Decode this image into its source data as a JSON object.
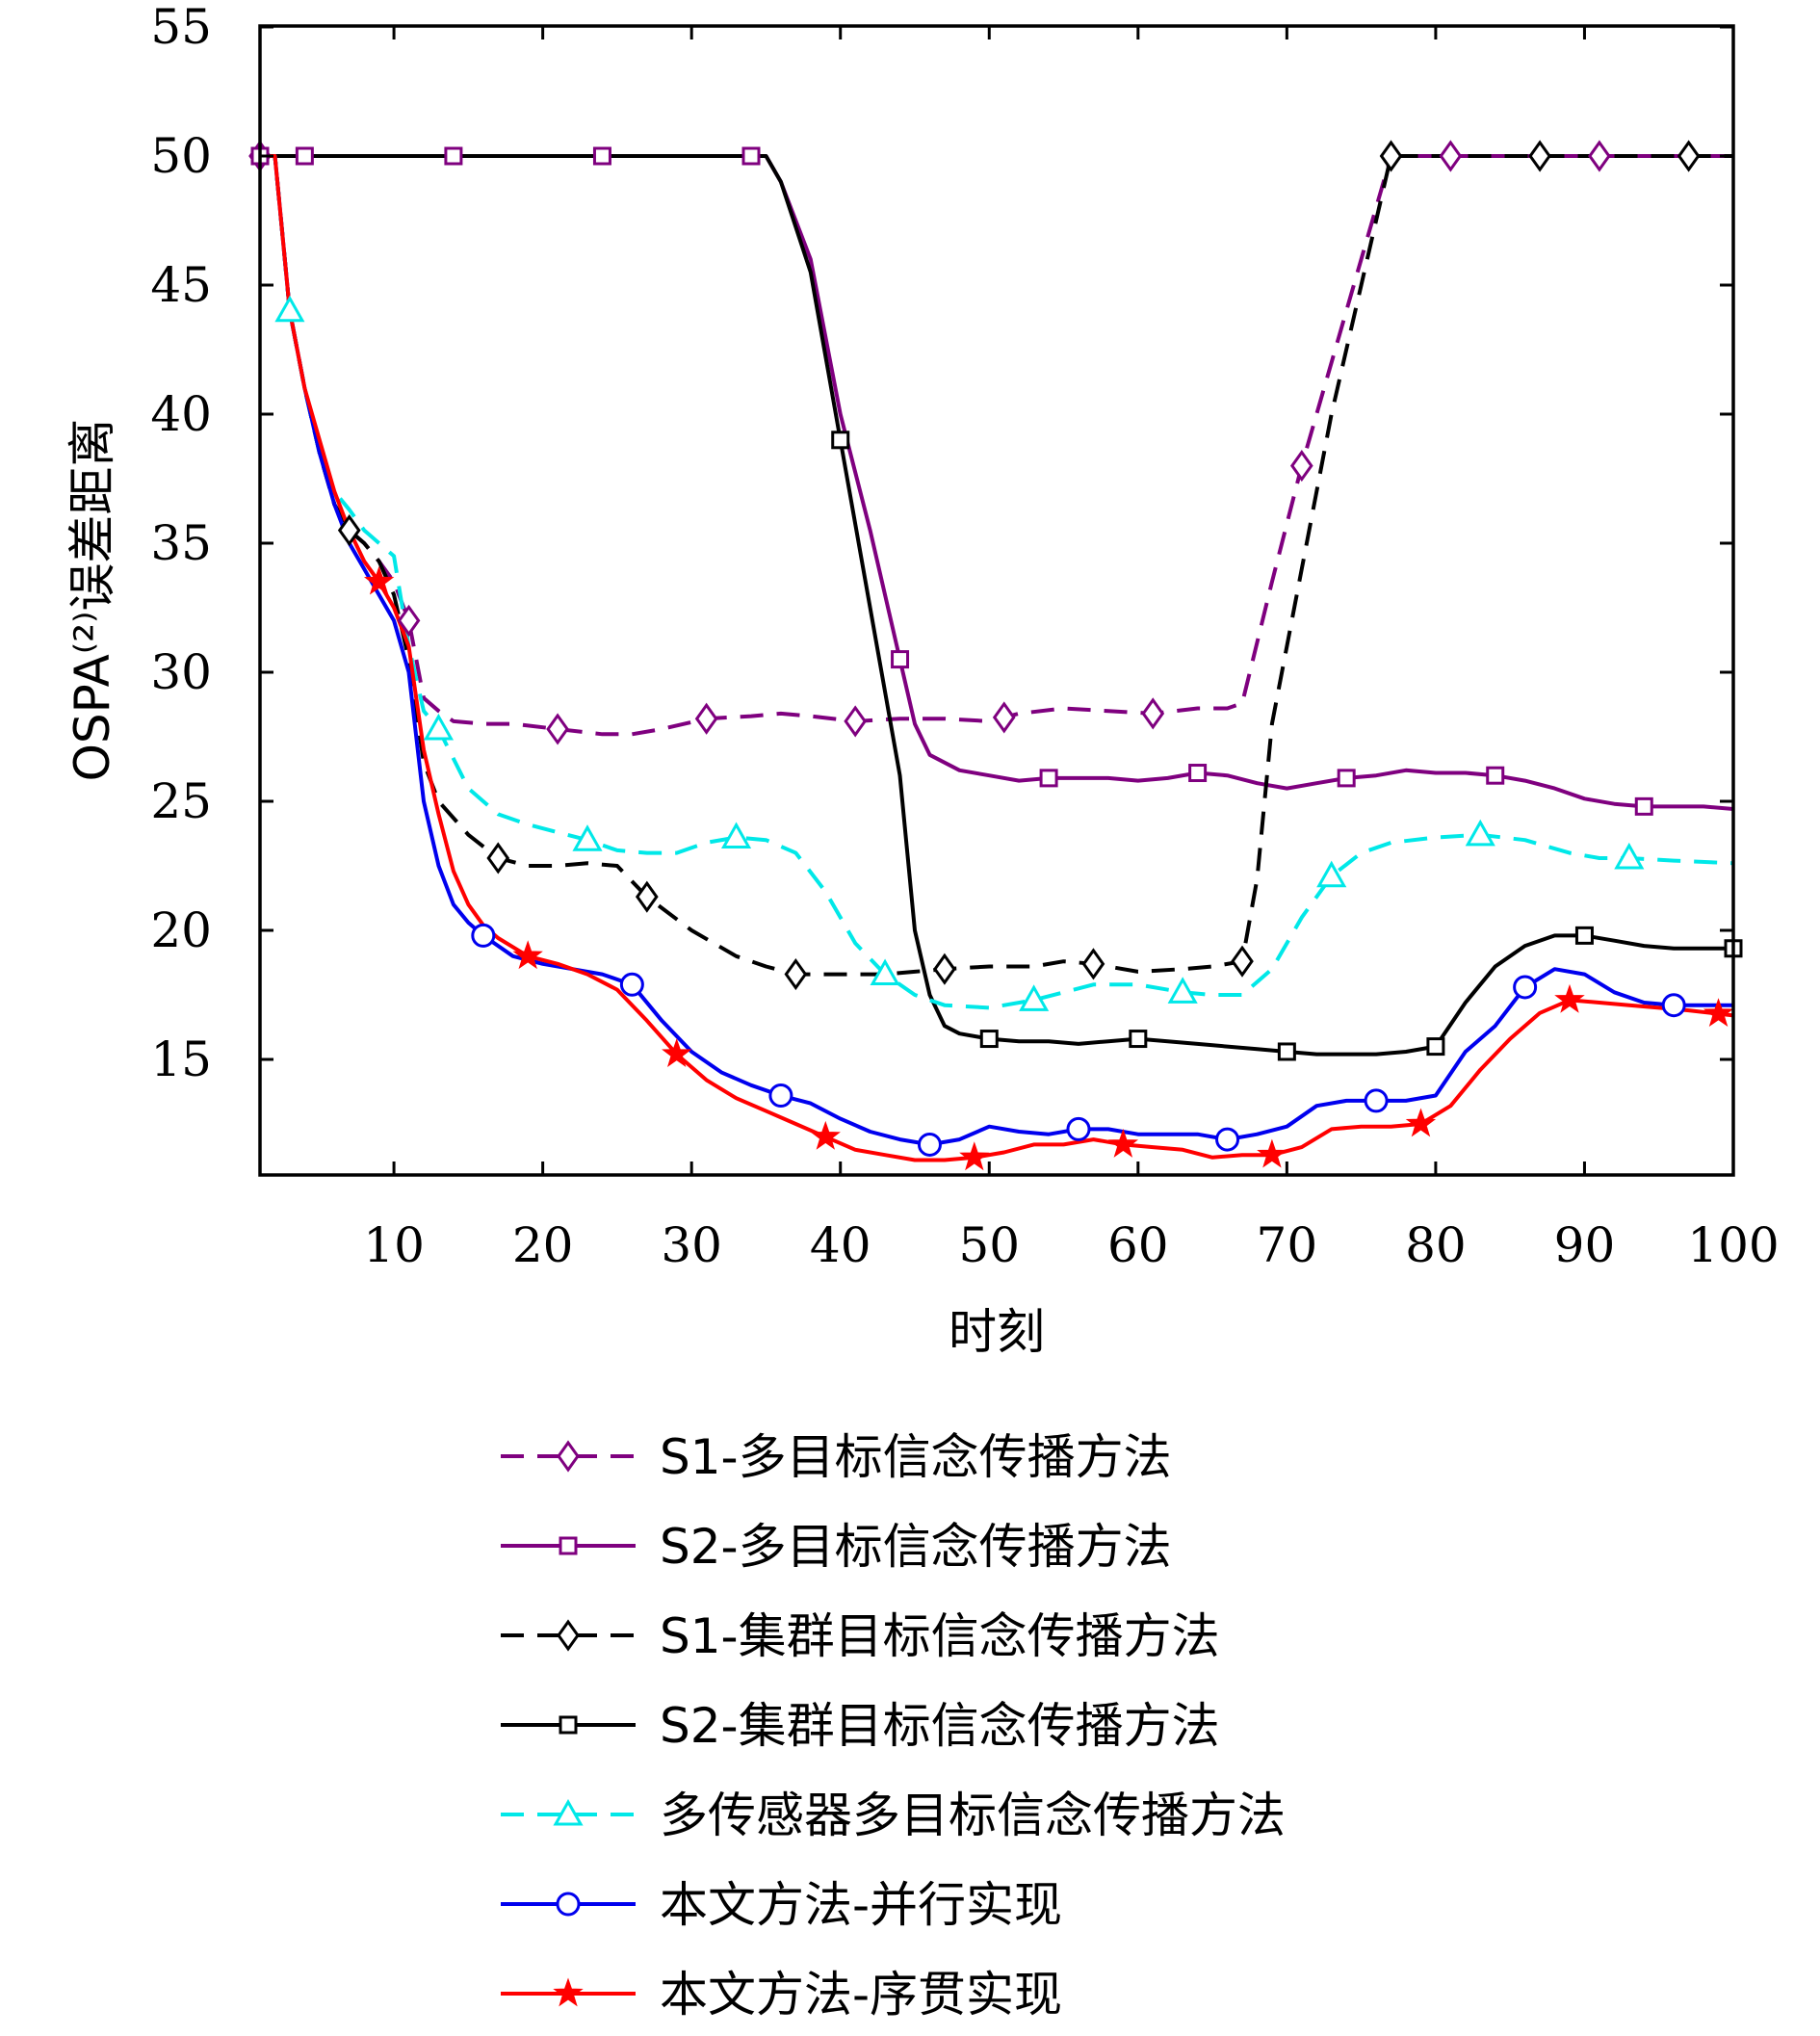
{
  "chart_data": {
    "type": "line",
    "xlabel": "时刻",
    "ylabel": "OSPA⁽²⁾误差距离",
    "xlim": [
      1,
      100
    ],
    "ylim": [
      11,
      55
    ],
    "xticks": [
      10,
      20,
      30,
      40,
      50,
      60,
      70,
      80,
      90,
      100
    ],
    "yticks": [
      15,
      20,
      25,
      30,
      35,
      40,
      45,
      50,
      55
    ],
    "grid": false,
    "legend_position": "below",
    "series": [
      {
        "name": "S1-多目标信念传播方法",
        "color": "#7f007f",
        "dash": "dashed",
        "marker": "diamond",
        "x": [
          1,
          2,
          3,
          4,
          5,
          6,
          7,
          8,
          9,
          10,
          11,
          12,
          13,
          14,
          16,
          18,
          21,
          24,
          26,
          28,
          31,
          34,
          36,
          38,
          41,
          44,
          47,
          50,
          52,
          55,
          58,
          61,
          64,
          66,
          67,
          69,
          71,
          73,
          75,
          77,
          81,
          86,
          91,
          97,
          100
        ],
        "y": [
          50,
          50,
          44,
          41,
          38.5,
          36.5,
          35.5,
          35,
          34.3,
          33.5,
          32,
          29,
          28.5,
          28.1,
          28,
          28,
          27.8,
          27.6,
          27.6,
          27.8,
          28.2,
          28.3,
          28.4,
          28.3,
          28.1,
          28.2,
          28.2,
          28.1,
          28.4,
          28.6,
          28.5,
          28.4,
          28.6,
          28.6,
          28.8,
          33.5,
          38,
          42,
          46,
          50,
          50,
          50,
          50,
          50,
          50
        ],
        "markers_x": [
          1,
          11,
          21,
          31,
          41,
          51,
          61,
          71,
          81,
          91
        ]
      },
      {
        "name": "S2-多目标信念传播方法",
        "color": "#7f007f",
        "dash": "solid",
        "marker": "square",
        "x": [
          1,
          4,
          10,
          14,
          20,
          24,
          30,
          35,
          36,
          38,
          40,
          42,
          44,
          45,
          46,
          48,
          50,
          52,
          54,
          56,
          58,
          60,
          62,
          64,
          66,
          68,
          70,
          72,
          74,
          76,
          78,
          80,
          82,
          84,
          86,
          88,
          90,
          92,
          94,
          96,
          98,
          100
        ],
        "y": [
          50,
          50,
          50,
          50,
          50,
          50,
          50,
          50,
          49,
          46,
          40,
          35.5,
          30.5,
          28,
          26.8,
          26.2,
          26,
          25.8,
          25.9,
          25.9,
          25.9,
          25.8,
          25.9,
          26.1,
          26,
          25.7,
          25.5,
          25.7,
          25.9,
          26,
          26.2,
          26.1,
          26.1,
          26,
          25.8,
          25.5,
          25.1,
          24.9,
          24.8,
          24.8,
          24.8,
          24.7
        ],
        "markers_x": [
          1,
          4,
          14,
          24,
          34,
          44,
          54,
          64,
          74,
          84,
          94
        ]
      },
      {
        "name": "S1-集群目标信念传播方法",
        "color": "#000000",
        "dash": "dashed",
        "marker": "diamond",
        "x": [
          1,
          2,
          3,
          4,
          5,
          6,
          7,
          8,
          9,
          10,
          11,
          12,
          13,
          15,
          17,
          19,
          21,
          23,
          25,
          27,
          30,
          33,
          35,
          37,
          40,
          43,
          45,
          47,
          50,
          53,
          55,
          57,
          60,
          63,
          65,
          67,
          68,
          69,
          71,
          73,
          75,
          77,
          87,
          97,
          100
        ],
        "y": [
          50,
          50,
          44,
          41,
          38.5,
          36.5,
          35.5,
          35,
          34.3,
          33,
          30.5,
          26.5,
          25,
          23.7,
          22.8,
          22.5,
          22.5,
          22.6,
          22.5,
          21.3,
          20,
          19,
          18.6,
          18.3,
          18.3,
          18.3,
          18.4,
          18.5,
          18.6,
          18.6,
          18.8,
          18.7,
          18.4,
          18.5,
          18.6,
          18.8,
          22,
          28,
          34,
          40,
          45,
          50,
          50,
          50,
          50
        ],
        "markers_x": [
          7,
          17,
          27,
          37,
          47,
          57,
          67,
          77,
          87,
          97
        ]
      },
      {
        "name": "S2-集群目标信念传播方法",
        "color": "#000000",
        "dash": "solid",
        "marker": "square",
        "x": [
          1,
          10,
          20,
          30,
          35,
          36,
          38,
          40,
          42,
          44,
          45,
          46,
          47,
          48,
          50,
          52,
          54,
          56,
          58,
          60,
          62,
          64,
          66,
          68,
          70,
          72,
          74,
          76,
          78,
          80,
          82,
          84,
          86,
          88,
          90,
          92,
          94,
          96,
          98,
          100
        ],
        "y": [
          50,
          50,
          50,
          50,
          50,
          49,
          45.5,
          39,
          32.5,
          26,
          20,
          17.5,
          16.3,
          16,
          15.8,
          15.7,
          15.7,
          15.6,
          15.7,
          15.8,
          15.7,
          15.6,
          15.5,
          15.4,
          15.3,
          15.2,
          15.2,
          15.2,
          15.3,
          15.5,
          17.2,
          18.6,
          19.4,
          19.8,
          19.8,
          19.6,
          19.4,
          19.3,
          19.3,
          19.3
        ],
        "markers_x": [
          40,
          50,
          60,
          70,
          80,
          90,
          100
        ]
      },
      {
        "name": "多传感器多目标信念传播方法",
        "color": "#00e8e8",
        "dash": "dashed",
        "marker": "triangle",
        "x": [
          1,
          2,
          3,
          4,
          5,
          6,
          7,
          8,
          9,
          10,
          11,
          12,
          13,
          15,
          17,
          19,
          21,
          23,
          25,
          27,
          29,
          31,
          33,
          35,
          37,
          39,
          41,
          43,
          45,
          47,
          50,
          53,
          55,
          57,
          60,
          63,
          65,
          67,
          69,
          71,
          73,
          75,
          77,
          80,
          83,
          86,
          89,
          91,
          93,
          96,
          100
        ],
        "y": [
          50,
          50,
          44,
          41,
          38.5,
          37,
          36.3,
          35.5,
          35,
          34.5,
          31,
          28.5,
          27.8,
          25.5,
          24.5,
          24.1,
          23.8,
          23.5,
          23.1,
          23,
          23,
          23.4,
          23.6,
          23.5,
          23,
          21.5,
          19.5,
          18.3,
          17.5,
          17.1,
          17,
          17.3,
          17.6,
          17.9,
          17.9,
          17.6,
          17.5,
          17.5,
          18.5,
          20.5,
          22.1,
          23,
          23.4,
          23.6,
          23.7,
          23.5,
          23,
          22.8,
          22.8,
          22.7,
          22.6
        ],
        "markers_x": [
          3,
          13,
          23,
          33,
          43,
          53,
          63,
          73,
          83,
          93
        ]
      },
      {
        "name": "本文方法-并行实现",
        "color": "#0000ee",
        "dash": "solid",
        "marker": "circle",
        "x": [
          1,
          2,
          3,
          4,
          5,
          6,
          7,
          8,
          9,
          10,
          11,
          12,
          13,
          14,
          15,
          16,
          18,
          20,
          22,
          24,
          26,
          28,
          30,
          32,
          34,
          36,
          38,
          40,
          42,
          44,
          46,
          48,
          50,
          52,
          54,
          56,
          58,
          60,
          62,
          64,
          66,
          68,
          70,
          72,
          74,
          76,
          78,
          80,
          82,
          84,
          86,
          88,
          90,
          92,
          94,
          96,
          98,
          100
        ],
        "y": [
          50,
          50,
          44,
          41,
          38.5,
          36.5,
          35,
          34,
          33,
          32,
          30,
          25,
          22.5,
          21,
          20.3,
          19.8,
          19,
          18.7,
          18.5,
          18.3,
          17.9,
          16.5,
          15.3,
          14.5,
          14,
          13.6,
          13.3,
          12.7,
          12.2,
          11.9,
          11.7,
          11.9,
          12.4,
          12.2,
          12.1,
          12.3,
          12.3,
          12.1,
          12.1,
          12.1,
          11.9,
          12.1,
          12.4,
          13.2,
          13.4,
          13.4,
          13.4,
          13.6,
          15.3,
          16.3,
          17.8,
          18.5,
          18.3,
          17.6,
          17.2,
          17.1,
          17.1,
          17.1
        ],
        "markers_x": [
          16,
          26,
          36,
          46,
          56,
          66,
          76,
          86,
          96
        ]
      },
      {
        "name": "本文方法-序贯实现",
        "color": "#ff0000",
        "dash": "solid",
        "marker": "star",
        "x": [
          1,
          2,
          3,
          4,
          5,
          6,
          7,
          8,
          9,
          10,
          11,
          12,
          13,
          14,
          15,
          16,
          17,
          19,
          21,
          23,
          25,
          27,
          29,
          31,
          33,
          35,
          37,
          39,
          41,
          43,
          45,
          47,
          49,
          51,
          53,
          55,
          57,
          59,
          61,
          63,
          65,
          67,
          69,
          71,
          73,
          75,
          77,
          79,
          81,
          83,
          85,
          87,
          89,
          91,
          93,
          95,
          97,
          100
        ],
        "y": [
          50,
          50,
          44,
          41,
          39,
          37,
          35.5,
          34.3,
          33.5,
          32.5,
          31,
          27,
          24.5,
          22.3,
          21,
          20.2,
          19.7,
          19,
          18.7,
          18.3,
          17.7,
          16.5,
          15.2,
          14.2,
          13.5,
          13,
          12.5,
          12,
          11.5,
          11.3,
          11.1,
          11.1,
          11.2,
          11.4,
          11.7,
          11.7,
          11.9,
          11.7,
          11.6,
          11.5,
          11.2,
          11.3,
          11.3,
          11.6,
          12.3,
          12.4,
          12.4,
          12.5,
          13.2,
          14.6,
          15.8,
          16.8,
          17.3,
          17.2,
          17.1,
          17,
          16.9,
          16.7
        ],
        "markers_x": [
          9,
          19,
          29,
          39,
          49,
          59,
          69,
          79,
          89,
          99
        ]
      }
    ]
  }
}
